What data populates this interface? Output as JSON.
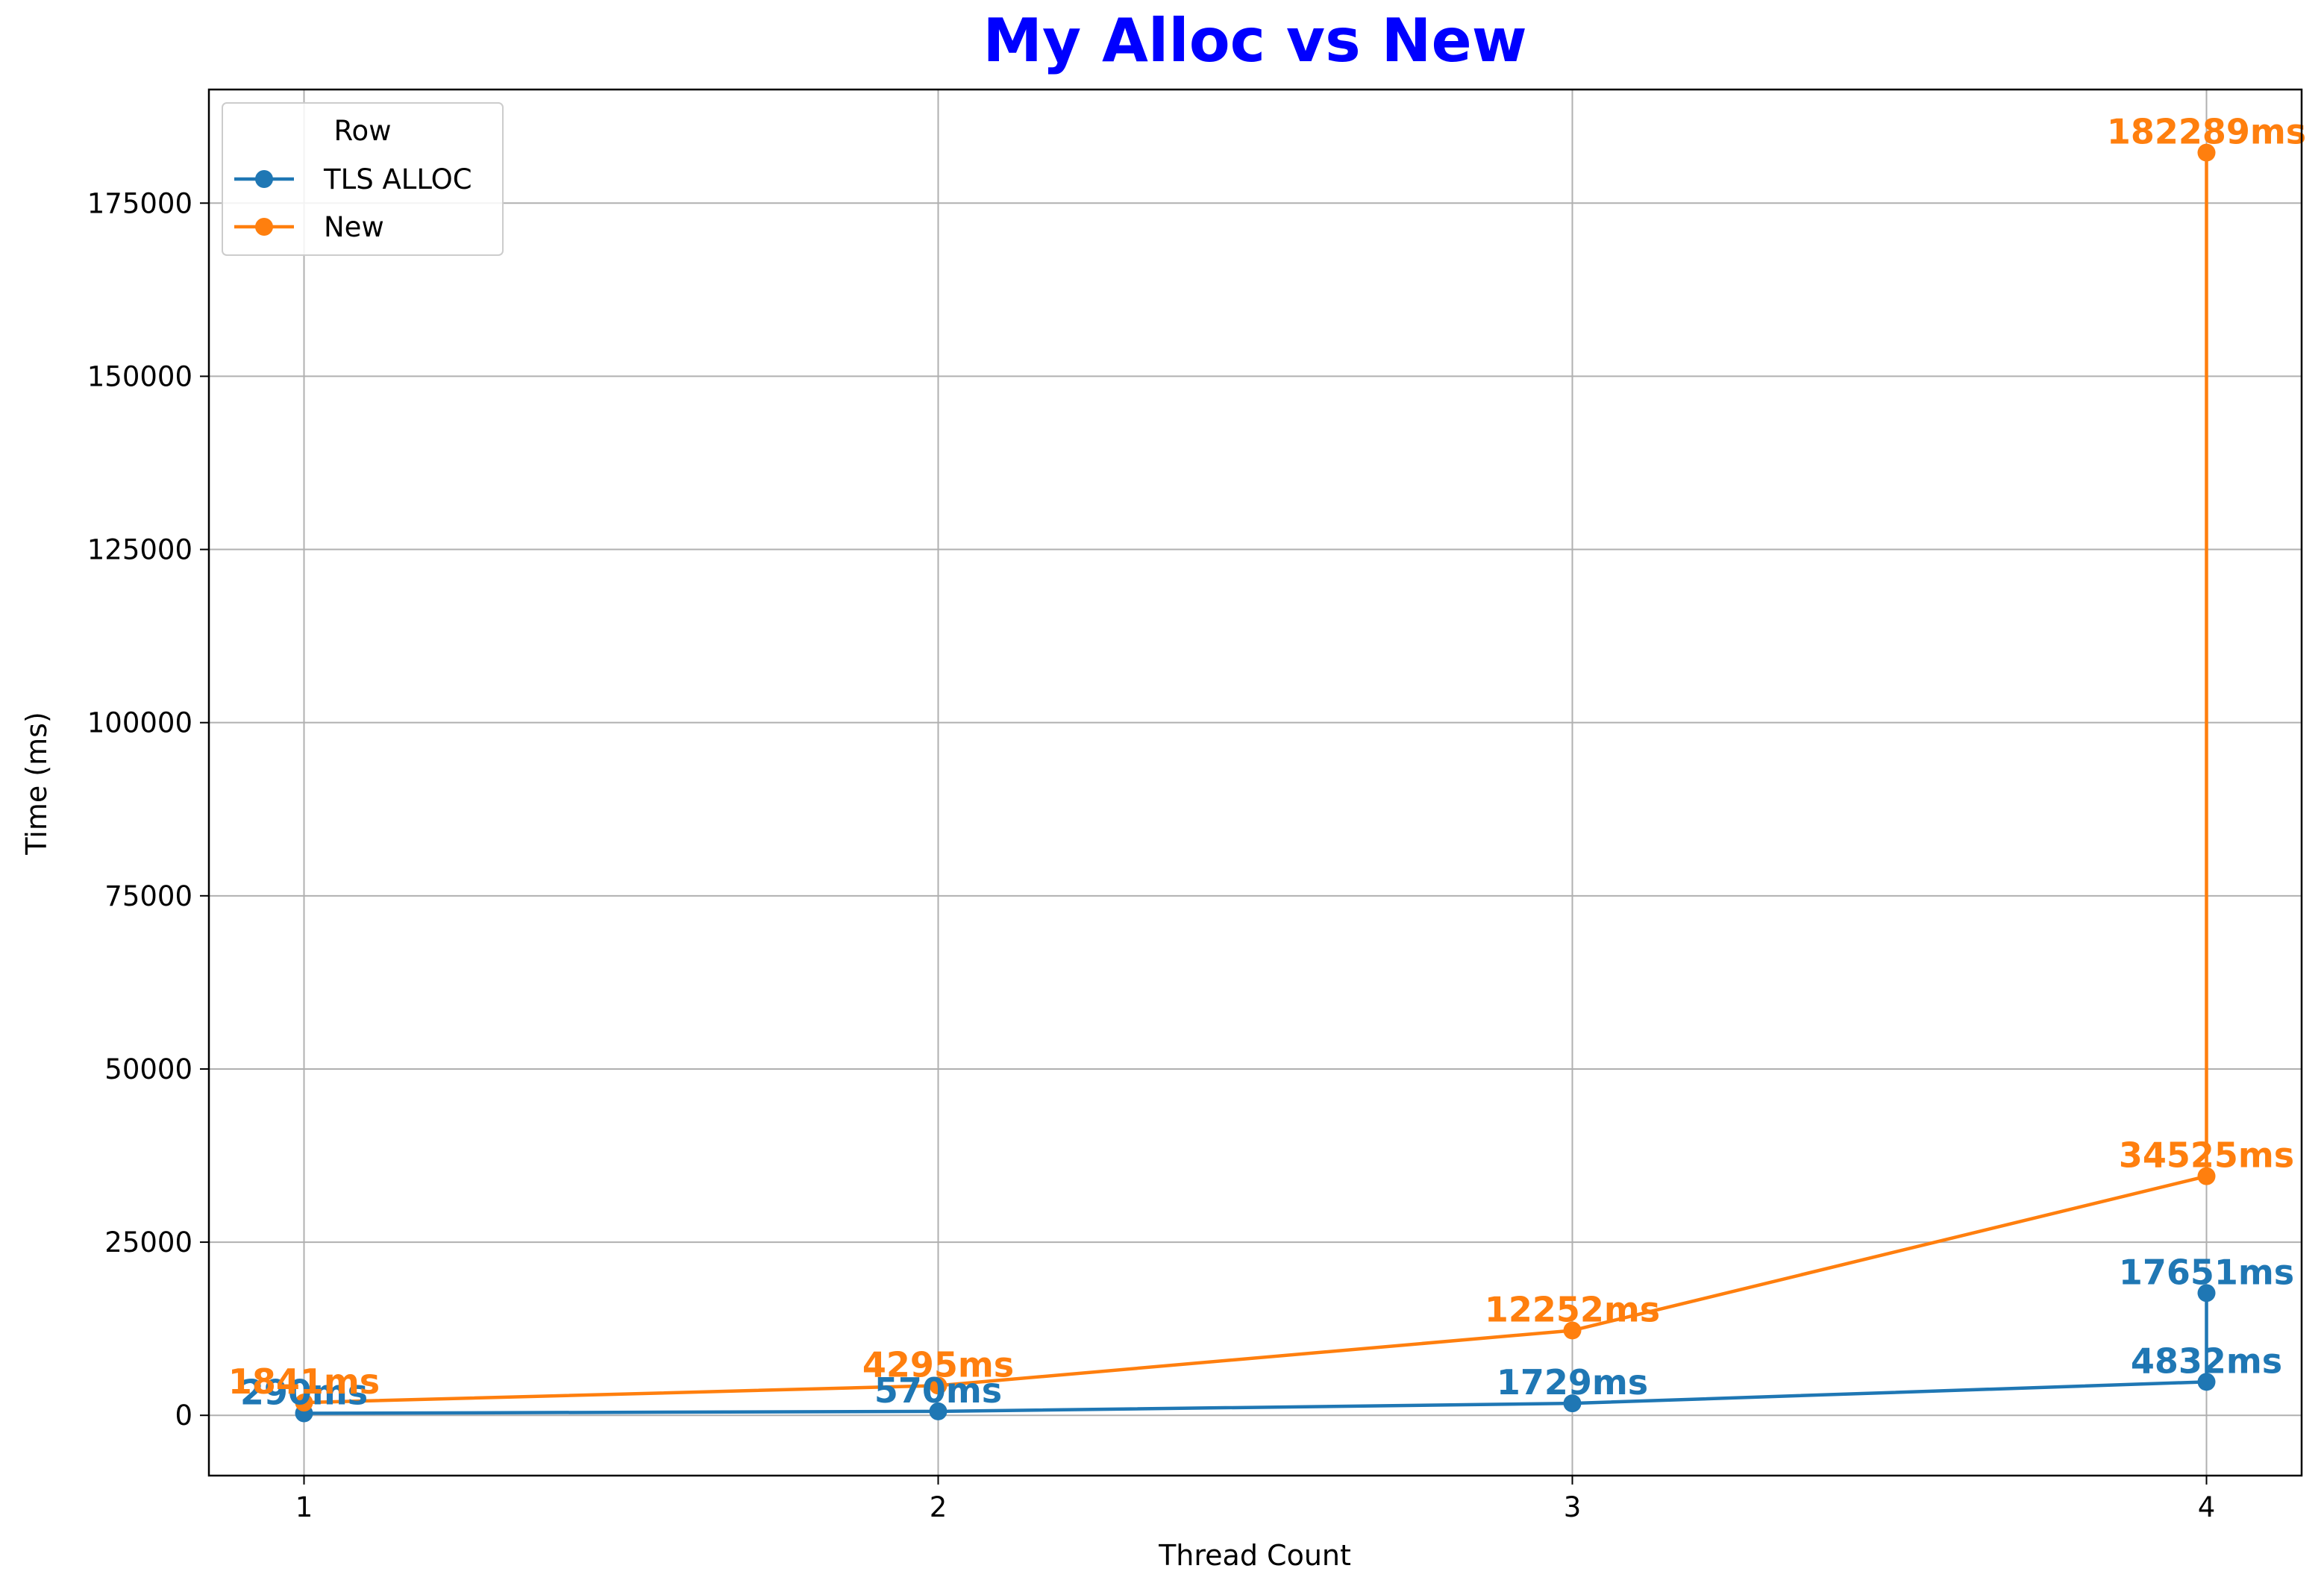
{
  "chart_data": {
    "type": "line",
    "title": "My Alloc vs New",
    "title_color": "#0000ff",
    "xlabel": "Thread Count",
    "ylabel": "Time (ms)",
    "xlim": [
      0.85,
      4.15
    ],
    "ylim": [
      -8700,
      191400
    ],
    "xticks": [
      1,
      2,
      3,
      4
    ],
    "xtick_labels": [
      "1",
      "2",
      "3",
      "4"
    ],
    "yticks": [
      0,
      25000,
      50000,
      75000,
      100000,
      125000,
      150000,
      175000
    ],
    "ytick_labels": [
      "0",
      "25000",
      "50000",
      "75000",
      "100000",
      "125000",
      "150000",
      "175000"
    ],
    "grid": true,
    "legend": {
      "title": "Row",
      "placement": "top-left"
    },
    "series": [
      {
        "name": "TLS ALLOC",
        "color": "#1f77b4",
        "x": [
          1,
          2,
          3,
          4,
          4
        ],
        "y": [
          290,
          570,
          1729,
          4832,
          17651
        ],
        "labels": [
          "290ms",
          "570ms",
          "1729ms",
          "4832ms",
          "17651ms"
        ]
      },
      {
        "name": "New",
        "color": "#ff7f0e",
        "x": [
          1,
          2,
          3,
          4,
          4
        ],
        "y": [
          1841,
          4295,
          12252,
          34525,
          182289
        ],
        "labels": [
          "1841ms",
          "4295ms",
          "12252ms",
          "34525ms",
          "182289ms"
        ]
      }
    ]
  }
}
